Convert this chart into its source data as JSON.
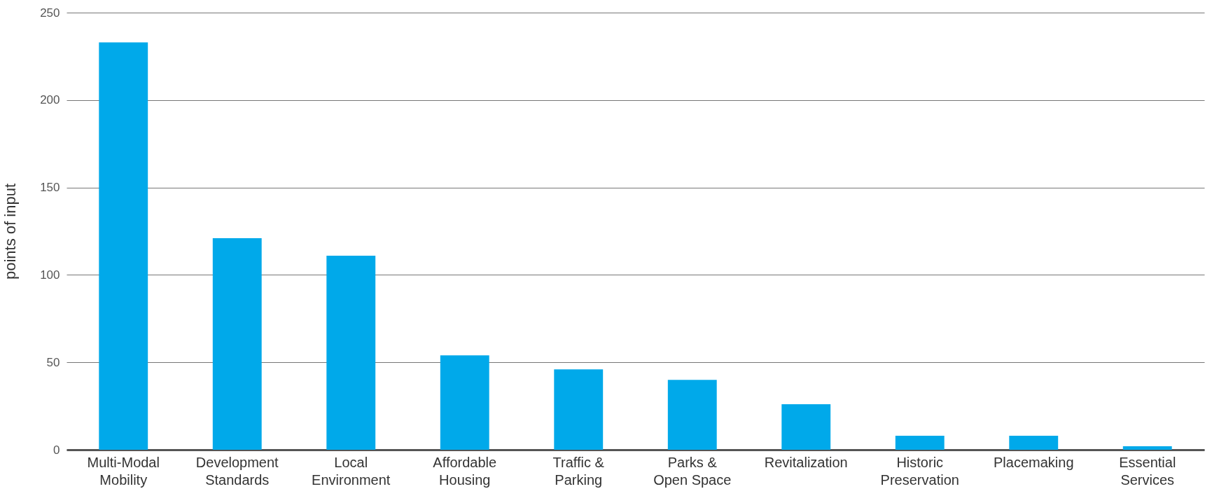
{
  "chart_data": {
    "type": "bar",
    "ylabel": "points of input",
    "categories": [
      "Multi-Modal Mobility",
      "Development Standards",
      "Local Environment",
      "Affordable Housing",
      "Traffic & Parking",
      "Parks & Open Space",
      "Revitalization",
      "Historic Preservation",
      "Placemaking",
      "Essential Services"
    ],
    "values": [
      233,
      121,
      111,
      54,
      46,
      40,
      26,
      8,
      8,
      2
    ],
    "color": "#00a9ea",
    "ylim": [
      0,
      250
    ],
    "yticks": [
      0,
      50,
      100,
      150,
      200,
      250
    ],
    "grid": "y"
  }
}
